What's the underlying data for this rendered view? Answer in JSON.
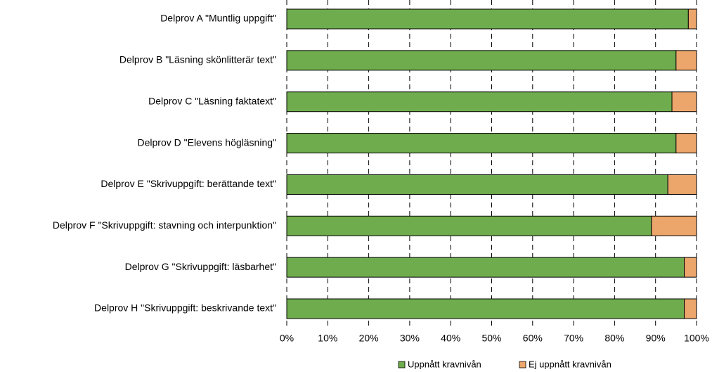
{
  "chart_data": {
    "type": "stacked_barh",
    "categories": [
      "Delprov A \"Muntlig uppgift\"",
      "Delprov B \"Läsning skönlitterär text\"",
      "Delprov C \"Läsning faktatext\"",
      "Delprov D \"Elevens högläsning\"",
      "Delprov E \"Skrivuppgift: berättande text\"",
      "Delprov F \"Skrivuppgift: stavning och interpunktion\"",
      "Delprov G \"Skrivuppgift: läsbarhet\"",
      "Delprov H \"Skrivuppgift: beskrivande text\""
    ],
    "series": [
      {
        "name": "Uppnått kravnivån",
        "color": "#6fac4d",
        "values": [
          98,
          95,
          94,
          95,
          93,
          89,
          97,
          97
        ]
      },
      {
        "name": "Ej uppnått kravnivån",
        "color": "#eca66b",
        "values": [
          2,
          5,
          6,
          5,
          7,
          11,
          3,
          3
        ]
      }
    ],
    "xlim": [
      0,
      100
    ],
    "xticks": [
      {
        "value": 0,
        "label": "0%"
      },
      {
        "value": 10,
        "label": "10%"
      },
      {
        "value": 20,
        "label": "20%"
      },
      {
        "value": 30,
        "label": "30%"
      },
      {
        "value": 40,
        "label": "40%"
      },
      {
        "value": 50,
        "label": "50%"
      },
      {
        "value": 60,
        "label": "60%"
      },
      {
        "value": 70,
        "label": "70%"
      },
      {
        "value": 80,
        "label": "80%"
      },
      {
        "value": 90,
        "label": "90%"
      },
      {
        "value": 100,
        "label": "100%"
      }
    ],
    "grid": true,
    "legend": "bottom"
  }
}
